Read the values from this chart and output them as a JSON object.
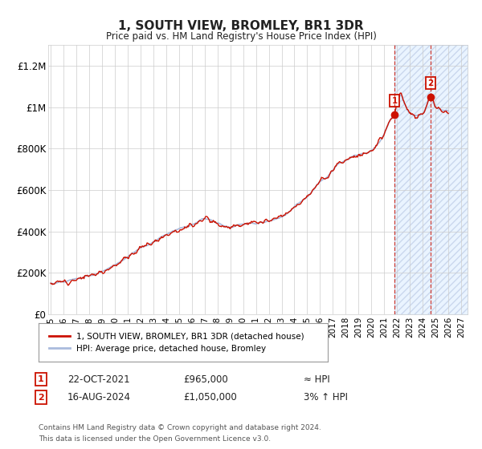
{
  "title": "1, SOUTH VIEW, BROMLEY, BR1 3DR",
  "subtitle": "Price paid vs. HM Land Registry's House Price Index (HPI)",
  "ylabel_ticks": [
    "£0",
    "£200K",
    "£400K",
    "£600K",
    "£800K",
    "£1M",
    "£1.2M"
  ],
  "ytick_values": [
    0,
    200000,
    400000,
    600000,
    800000,
    1000000,
    1200000
  ],
  "ylim": [
    0,
    1300000
  ],
  "xlim_start": 1994.8,
  "xlim_end": 2027.5,
  "hpi_color": "#aabbdd",
  "price_color": "#cc1100",
  "marker_color": "#cc1100",
  "shade_color": "#ddeeff",
  "shade_hatch_color": "#aabbdd",
  "t1_year": 2021.8,
  "t1_price": 965000,
  "t2_year": 2024.62,
  "t2_price": 1050000,
  "legend_line1": "1, SOUTH VIEW, BROMLEY, BR1 3DR (detached house)",
  "legend_line2": "HPI: Average price, detached house, Bromley",
  "annotation1_label": "1",
  "annotation1_date": "22-OCT-2021",
  "annotation1_price": "£965,000",
  "annotation1_hpi": "≈ HPI",
  "annotation2_label": "2",
  "annotation2_date": "16-AUG-2024",
  "annotation2_price": "£1,050,000",
  "annotation2_hpi": "3% ↑ HPI",
  "footer_line1": "Contains HM Land Registry data © Crown copyright and database right 2024.",
  "footer_line2": "This data is licensed under the Open Government Licence v3.0.",
  "background_color": "#ffffff",
  "grid_color": "#cccccc",
  "font_color": "#222222"
}
